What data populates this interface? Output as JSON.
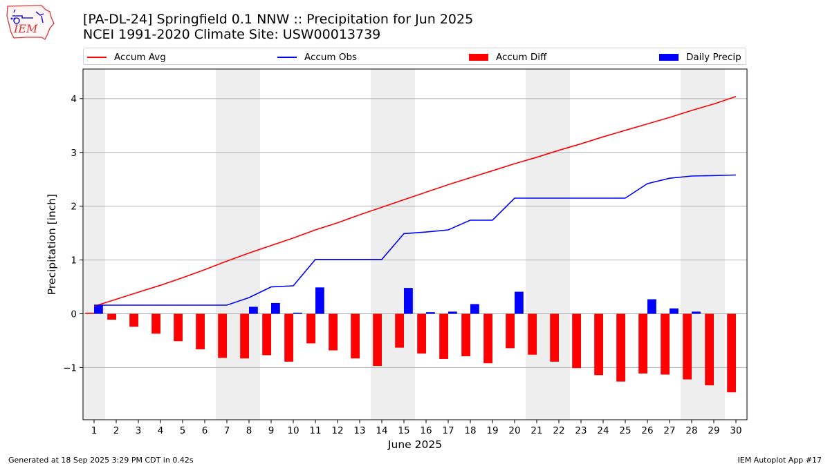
{
  "header": {
    "title_line1": "[PA-DL-24] Springfield 0.1 NNW :: Precipitation for Jun 2025",
    "title_line2": "NCEI 1991-2020 Climate Site: USW00013739",
    "logo_text": "IEM"
  },
  "footer": {
    "generated": "Generated at 18 Sep 2025 3:29 PM CDT in 0.42s",
    "app": "IEM Autoplot App #17"
  },
  "chart_data": {
    "type": "bar",
    "title": "[PA-DL-24] Springfield 0.1 NNW :: Precipitation for Jun 2025",
    "subtitle": "NCEI 1991-2020 Climate Site: USW00013739",
    "xlabel": "June 2025",
    "ylabel": "Precipitation [inch]",
    "x": [
      1,
      2,
      3,
      4,
      5,
      6,
      7,
      8,
      9,
      10,
      11,
      12,
      13,
      14,
      15,
      16,
      17,
      18,
      19,
      20,
      21,
      22,
      23,
      24,
      25,
      26,
      27,
      28,
      29,
      30
    ],
    "xlim": [
      0.5,
      30.5
    ],
    "ylim": [
      -1.97,
      4.55
    ],
    "yticks": [
      -1,
      0,
      1,
      2,
      3,
      4
    ],
    "ytick_labels": [
      "−1",
      "0",
      "1",
      "2",
      "3",
      "4"
    ],
    "grid": "y",
    "legend_position": "top",
    "weekend_shading": [
      [
        0.5,
        1.5
      ],
      [
        6.5,
        8.5
      ],
      [
        13.5,
        15.5
      ],
      [
        20.5,
        22.5
      ],
      [
        27.5,
        29.5
      ]
    ],
    "weekend_color": "#eeeeee",
    "series": [
      {
        "name": "Accum Avg",
        "kind": "line",
        "color": "#ff0000",
        "values": [
          0.14,
          0.27,
          0.4,
          0.53,
          0.67,
          0.82,
          0.98,
          1.13,
          1.27,
          1.41,
          1.56,
          1.69,
          1.84,
          1.98,
          2.12,
          2.26,
          2.4,
          2.53,
          2.66,
          2.79,
          2.91,
          3.04,
          3.16,
          3.29,
          3.41,
          3.53,
          3.65,
          3.78,
          3.9,
          4.04
        ]
      },
      {
        "name": "Accum Obs",
        "kind": "line",
        "color": "#0000ff",
        "values": [
          0.16,
          0.16,
          0.16,
          0.16,
          0.16,
          0.16,
          0.16,
          0.3,
          0.5,
          0.52,
          1.01,
          1.01,
          1.01,
          1.01,
          1.49,
          1.52,
          1.56,
          1.74,
          1.74,
          2.15,
          2.15,
          2.15,
          2.15,
          2.15,
          2.15,
          2.42,
          2.52,
          2.56,
          2.57,
          2.58
        ]
      },
      {
        "name": "Accum Diff",
        "kind": "bar",
        "color": "#ff0000",
        "values": [
          0.02,
          -0.11,
          -0.24,
          -0.37,
          -0.51,
          -0.66,
          -0.82,
          -0.83,
          -0.77,
          -0.89,
          -0.55,
          -0.68,
          -0.83,
          -0.97,
          -0.63,
          -0.74,
          -0.84,
          -0.79,
          -0.92,
          -0.64,
          -0.76,
          -0.89,
          -1.01,
          -1.14,
          -1.26,
          -1.11,
          -1.13,
          -1.22,
          -1.33,
          -1.46
        ]
      },
      {
        "name": "Daily Precip",
        "kind": "bar",
        "color": "#0000ff",
        "values": [
          0.16,
          0,
          0,
          0,
          0,
          0,
          0,
          0.13,
          0.2,
          0.02,
          0.49,
          0,
          0,
          0,
          0.48,
          0.03,
          0.04,
          0.18,
          0,
          0.41,
          0,
          0,
          0,
          0,
          0,
          0.27,
          0.1,
          0.04,
          0,
          0
        ]
      }
    ]
  }
}
